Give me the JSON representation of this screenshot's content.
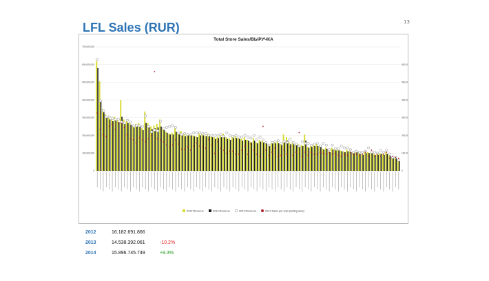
{
  "slide": {
    "title": "LFL Sales (RUR)",
    "page_number": "13"
  },
  "summary": [
    {
      "year": "2012",
      "value": "16.182.691.866",
      "change": "",
      "change_color": ""
    },
    {
      "year": "2013",
      "value": "14.538.392.061",
      "change": "-10.2%",
      "change_color": "#e02020"
    },
    {
      "year": "2014",
      "value": "15.896.745.749",
      "change": "+9.3%",
      "change_color": "#1a9a1a"
    }
  ],
  "chart_data": {
    "type": "bar",
    "title": "Total Store Sales/ВЫРУЧКА",
    "ylim": [
      0,
      700000000
    ],
    "y2lim": [
      0,
      600000
    ],
    "yticks": [
      "0",
      "100,000,000",
      "200,000,000",
      "300,000,000",
      "400,000,000",
      "500,000,000",
      "600,000,000",
      "700,000,000"
    ],
    "y2ticks": [
      "0",
      "100,000",
      "200,000",
      "300,000",
      "400,000",
      "500,000",
      "600,000"
    ],
    "legend_position": "bottom",
    "colors": {
      "2012": "#d7dc32",
      "2013": "#1f1f1f",
      "2014": "#ffffff",
      "sqm": "#b0202f"
    },
    "series": [
      {
        "name": "2012 Revenue",
        "kind": "bar",
        "values": [
          620,
          505,
          350,
          318,
          305,
          295,
          305,
          285,
          400,
          290,
          280,
          275,
          250,
          265,
          270,
          240,
          335,
          270,
          250,
          255,
          265,
          290,
          245,
          220,
          210,
          215,
          240,
          215,
          225,
          205,
          210,
          205,
          200,
          195,
          220,
          210,
          200,
          210,
          195,
          190,
          190,
          205,
          210,
          190,
          185,
          195,
          200,
          195,
          180,
          190,
          175,
          165,
          185,
          160,
          175,
          170,
          165,
          150,
          160,
          170,
          170,
          150,
          205,
          190,
          160,
          165,
          155,
          150,
          145,
          205,
          135,
          140,
          150,
          150,
          145,
          125,
          130,
          110,
          130,
          120,
          120,
          115,
          110,
          120,
          110,
          105,
          115,
          100,
          95,
          110,
          105,
          105,
          95,
          95,
          100,
          95,
          105,
          90,
          75,
          70,
          60
        ]
      },
      {
        "name": "2013 Revenue",
        "kind": "bar",
        "values": [
          580,
          400,
          330,
          305,
          290,
          280,
          285,
          275,
          305,
          270,
          270,
          260,
          245,
          250,
          255,
          230,
          270,
          255,
          235,
          240,
          245,
          250,
          230,
          215,
          205,
          205,
          220,
          205,
          210,
          195,
          200,
          200,
          195,
          190,
          200,
          200,
          195,
          195,
          190,
          180,
          185,
          190,
          195,
          180,
          175,
          185,
          185,
          180,
          170,
          175,
          170,
          160,
          170,
          155,
          165,
          160,
          160,
          145,
          155,
          155,
          155,
          145,
          170,
          170,
          150,
          150,
          145,
          140,
          140,
          170,
          130,
          135,
          140,
          140,
          135,
          120,
          125,
          105,
          120,
          115,
          115,
          110,
          105,
          110,
          105,
          100,
          105,
          95,
          90,
          100,
          100,
          100,
          90,
          90,
          95,
          90,
          95,
          85,
          70,
          70,
          60
        ]
      },
      {
        "name": "2014 Revenue",
        "kind": "marker",
        "values": [
          630,
          395,
          340,
          305,
          305,
          295,
          290,
          290,
          275,
          270,
          285,
          275,
          255,
          255,
          255,
          250,
          310,
          250,
          220,
          230,
          225,
          280,
          240,
          245,
          250,
          255,
          245,
          215,
          205,
          210,
          205,
          205,
          215,
          215,
          215,
          210,
          210,
          200,
          200,
          200,
          200,
          205,
          195,
          215,
          200,
          195,
          200,
          190,
          190,
          200,
          190,
          185,
          200,
          180,
          190,
          175,
          160,
          145,
          160,
          165,
          170,
          155,
          165,
          160,
          180,
          160,
          150,
          140,
          165,
          155,
          155,
          145,
          150,
          155,
          140,
          155,
          145,
          120,
          145,
          125,
          125,
          140,
          130,
          130,
          120,
          105,
          110,
          105,
          105,
          110,
          130,
          105,
          105,
          100,
          115,
          105,
          115,
          95,
          75,
          75,
          60
        ]
      },
      {
        "name": "2013 Sales per sqm (selling area)",
        "kind": "marker",
        "axis": "right",
        "values": [
          280,
          200,
          175,
          165,
          215,
          225,
          200,
          230,
          230,
          210,
          175,
          155,
          150,
          135,
          160,
          150,
          140,
          155,
          170,
          480,
          155,
          150,
          140,
          125,
          115,
          125,
          150,
          130,
          105,
          105,
          115,
          100,
          120,
          135,
          120,
          115,
          110,
          150,
          125,
          85,
          140,
          110,
          100,
          85,
          95,
          95,
          80,
          80,
          100,
          120,
          80,
          130,
          100,
          80,
          70,
          215,
          100,
          75,
          90,
          110,
          70,
          75,
          100,
          80,
          115,
          75,
          90,
          185,
          70,
          90,
          75,
          90,
          80,
          80,
          90,
          85,
          80,
          90,
          80,
          85,
          75,
          70,
          80,
          75,
          90,
          80,
          80,
          75,
          80,
          90,
          70,
          100,
          70,
          80,
          70,
          80,
          90,
          60,
          70,
          65,
          60
        ]
      }
    ]
  },
  "legend": {
    "items": [
      "2012 Revenue",
      "2013 Revenue",
      "2014 Revenue",
      "2013 Sales per sqm (selling area)"
    ]
  }
}
